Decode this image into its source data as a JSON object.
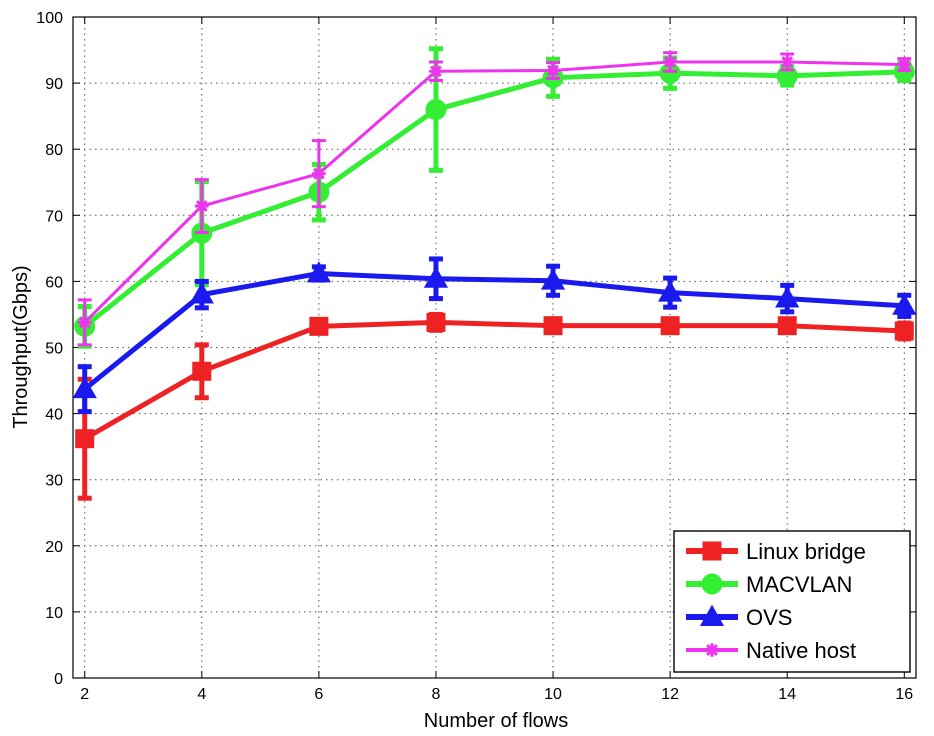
{
  "chart_data": {
    "type": "line",
    "xlabel": "Number of flows",
    "ylabel": "Throughput(Gbps)",
    "x": [
      2,
      4,
      6,
      8,
      10,
      12,
      14,
      16
    ],
    "xlim": [
      1.8,
      16.2
    ],
    "ylim": [
      0,
      100
    ],
    "xticks": [
      2,
      4,
      6,
      8,
      10,
      12,
      14,
      16
    ],
    "yticks": [
      0,
      10,
      20,
      30,
      40,
      50,
      60,
      70,
      80,
      90,
      100
    ],
    "grid": true,
    "legend_position": "bottom-right",
    "series": [
      {
        "name": "Linux bridge",
        "color": "#ee2222",
        "marker": "square",
        "values": [
          36.2,
          46.4,
          53.2,
          53.8,
          53.3,
          53.3,
          53.3,
          52.5
        ],
        "errors": [
          9.0,
          4.0,
          0.6,
          1.2,
          0.8,
          0.8,
          0.8,
          1.2
        ]
      },
      {
        "name": "MACVLAN",
        "color": "#33ee33",
        "marker": "circle",
        "values": [
          53.2,
          67.3,
          73.5,
          86.0,
          90.8,
          91.5,
          91.1,
          91.7
        ],
        "errors": [
          3.0,
          7.8,
          4.2,
          9.2,
          2.8,
          2.3,
          1.4,
          1.3
        ]
      },
      {
        "name": "OVS",
        "color": "#1a1aee",
        "marker": "triangle",
        "values": [
          43.7,
          58.0,
          61.2,
          60.4,
          60.1,
          58.3,
          57.4,
          56.3
        ],
        "errors": [
          3.4,
          2.0,
          1.0,
          3.0,
          2.2,
          2.2,
          2.0,
          1.6
        ]
      },
      {
        "name": "Native host",
        "color": "#ee33ee",
        "marker": "star",
        "values": [
          53.8,
          71.4,
          76.3,
          91.8,
          91.9,
          93.2,
          93.2,
          92.8
        ],
        "errors": [
          3.4,
          4.0,
          5.0,
          1.4,
          1.2,
          1.4,
          1.2,
          0.9
        ]
      }
    ]
  }
}
